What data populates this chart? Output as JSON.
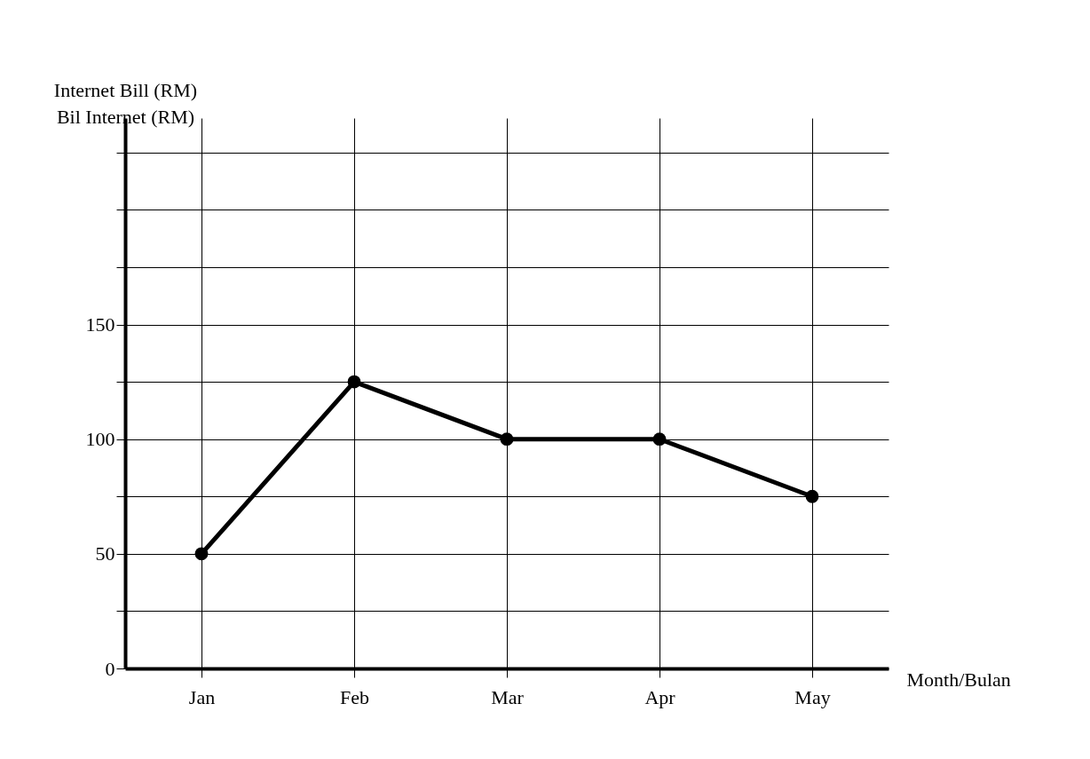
{
  "chart_data": {
    "type": "line",
    "xlabel": "Month/Bulan",
    "ylabel": "Internet Bill (RM)\nBil Internet (RM)",
    "categories": [
      "Jan",
      "Feb",
      "Mar",
      "Apr",
      "May"
    ],
    "series": [
      {
        "color": "#000000",
        "values": [
          50,
          125,
          100,
          100,
          75
        ]
      }
    ],
    "ylim": [
      0,
      240
    ],
    "yticks": [
      0,
      {
        "value": 25,
        "label": null
      },
      50,
      {
        "value": 75,
        "label": null
      },
      100,
      {
        "value": 125,
        "label": null
      },
      150,
      {
        "value": 175,
        "label": null
      },
      {
        "value": 200,
        "label": null
      },
      {
        "value": 225,
        "label": null
      }
    ],
    "grid": true,
    "marker": "circle",
    "line_style": "solid"
  }
}
